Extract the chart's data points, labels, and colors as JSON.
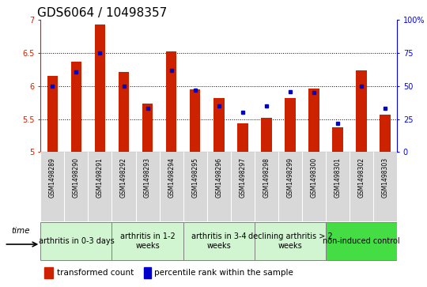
{
  "title": "GDS6064 / 10498357",
  "samples": [
    "GSM1498289",
    "GSM1498290",
    "GSM1498291",
    "GSM1498292",
    "GSM1498293",
    "GSM1498294",
    "GSM1498295",
    "GSM1498296",
    "GSM1498297",
    "GSM1498298",
    "GSM1498299",
    "GSM1498300",
    "GSM1498301",
    "GSM1498302",
    "GSM1498303"
  ],
  "transformed_count": [
    6.16,
    6.37,
    6.93,
    6.22,
    5.73,
    6.53,
    5.95,
    5.82,
    5.43,
    5.52,
    5.82,
    5.96,
    5.37,
    6.24,
    5.57
  ],
  "percentile_rank": [
    50,
    61,
    75,
    50,
    33,
    62,
    47,
    35,
    30,
    35,
    46,
    45,
    22,
    50,
    33
  ],
  "groups": [
    {
      "label": "arthritis in 0-3 days",
      "start": 0,
      "end": 3
    },
    {
      "label": "arthritis in 1-2\nweeks",
      "start": 3,
      "end": 6
    },
    {
      "label": "arthritis in 3-4\nweeks",
      "start": 6,
      "end": 9
    },
    {
      "label": "declining arthritis > 2\nweeks",
      "start": 9,
      "end": 12
    },
    {
      "label": "non-induced control",
      "start": 12,
      "end": 15
    }
  ],
  "group_colors": [
    "#d0f5d0",
    "#d0f5d0",
    "#d0f5d0",
    "#d0f5d0",
    "#44dd44"
  ],
  "ymin": 5.0,
  "ymax": 7.0,
  "yticks": [
    5.0,
    5.5,
    6.0,
    6.5,
    7.0
  ],
  "bar_color": "#cc2200",
  "dot_color": "#0000cc",
  "right_axis_ticks": [
    0,
    25,
    50,
    75,
    100
  ],
  "right_axis_labels": [
    "0",
    "25",
    "50",
    "75",
    "100%"
  ],
  "sample_box_color": "#d8d8d8",
  "title_fontsize": 11,
  "tick_fontsize": 7,
  "group_label_fontsize": 7,
  "legend_fontsize": 7.5,
  "sample_label_fontsize": 5.5
}
